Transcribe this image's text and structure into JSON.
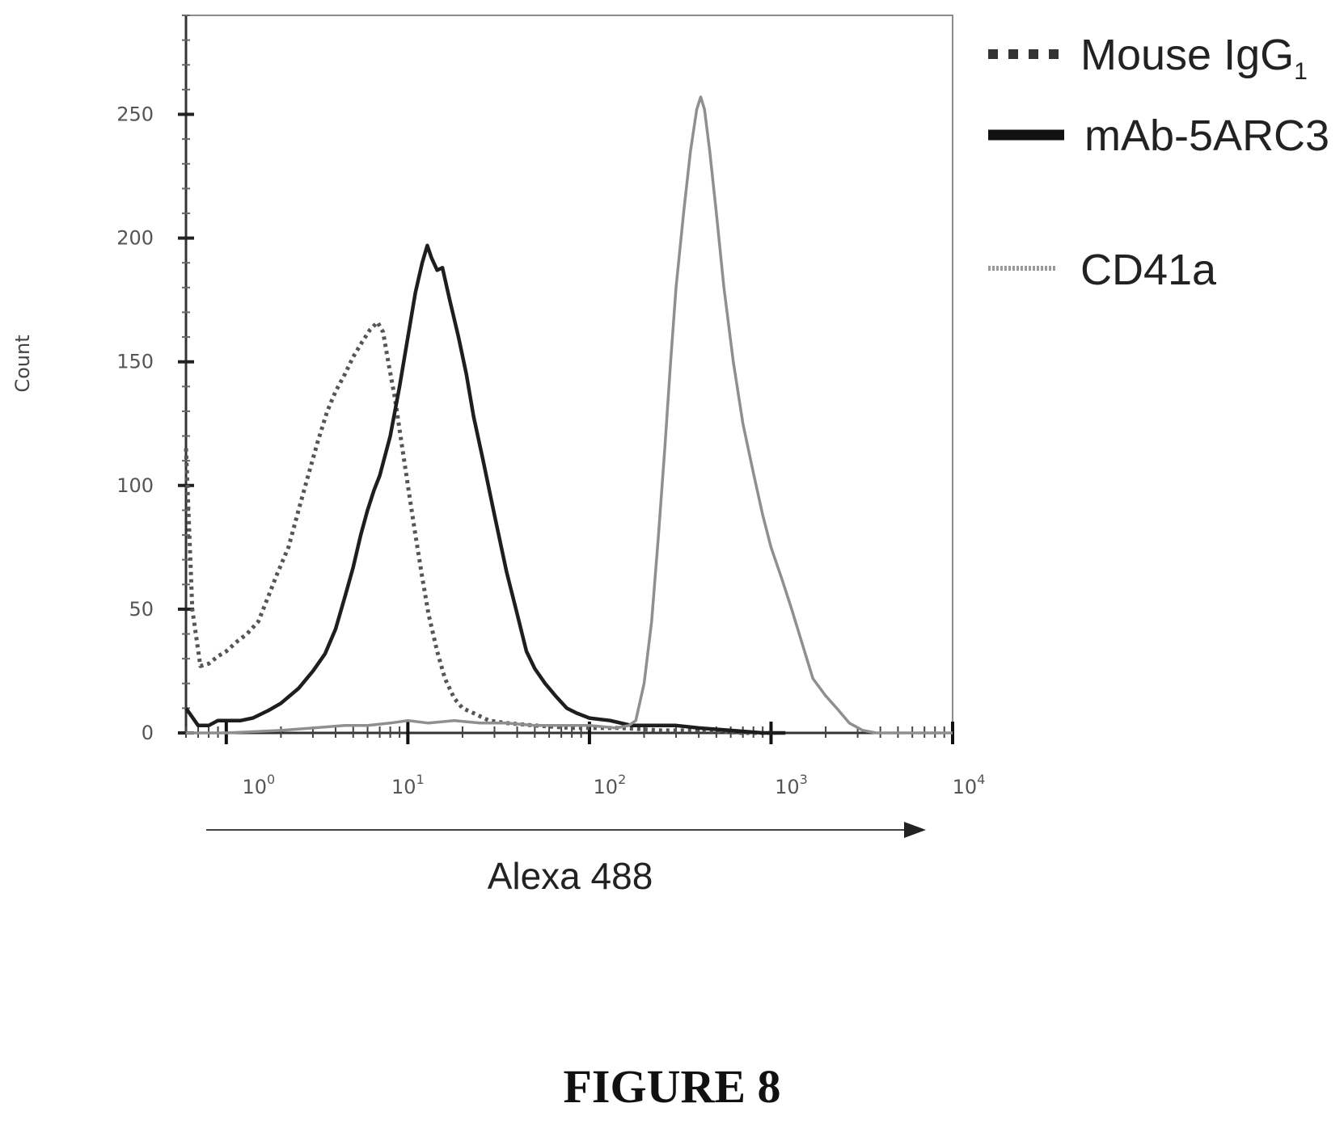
{
  "chart_data": {
    "type": "line",
    "ylabel": "Count",
    "xlabel": "Alexa 488",
    "x_scale": "log",
    "xlim": [
      0.6,
      10000
    ],
    "ylim": [
      0,
      290
    ],
    "x_ticks": [
      {
        "value": 1,
        "base": "10",
        "exp": "0"
      },
      {
        "value": 10,
        "base": "10",
        "exp": "1"
      },
      {
        "value": 100,
        "base": "10",
        "exp": "2"
      },
      {
        "value": 1000,
        "base": "10",
        "exp": "3"
      },
      {
        "value": 10000,
        "base": "10",
        "exp": "4"
      }
    ],
    "y_ticks": [
      0,
      50,
      100,
      150,
      200,
      250
    ],
    "legend_position": "top-right",
    "series": [
      {
        "name_main": "Mouse IgG",
        "name_sub": "1",
        "style": "dotted",
        "color": "#555555",
        "points": [
          [
            0.6,
            115
          ],
          [
            0.65,
            50
          ],
          [
            0.72,
            27
          ],
          [
            0.8,
            28
          ],
          [
            0.9,
            31
          ],
          [
            1.0,
            33
          ],
          [
            1.15,
            37
          ],
          [
            1.3,
            40
          ],
          [
            1.5,
            45
          ],
          [
            1.7,
            55
          ],
          [
            1.9,
            64
          ],
          [
            2.2,
            75
          ],
          [
            2.5,
            90
          ],
          [
            2.8,
            103
          ],
          [
            3.2,
            118
          ],
          [
            3.6,
            130
          ],
          [
            4.0,
            138
          ],
          [
            4.5,
            145
          ],
          [
            5.0,
            152
          ],
          [
            5.6,
            158
          ],
          [
            6.2,
            163
          ],
          [
            6.8,
            166
          ],
          [
            7.3,
            162
          ],
          [
            7.8,
            150
          ],
          [
            8.5,
            135
          ],
          [
            9.2,
            118
          ],
          [
            10.0,
            100
          ],
          [
            11.0,
            80
          ],
          [
            12.0,
            63
          ],
          [
            13.0,
            48
          ],
          [
            14.5,
            33
          ],
          [
            16.0,
            22
          ],
          [
            18.0,
            14
          ],
          [
            20.0,
            10
          ],
          [
            23.0,
            8
          ],
          [
            28.0,
            5
          ],
          [
            35.0,
            4
          ],
          [
            50.0,
            3
          ],
          [
            80.0,
            2
          ],
          [
            150.0,
            2
          ],
          [
            250.0,
            1
          ],
          [
            400.0,
            1
          ],
          [
            700.0,
            0
          ],
          [
            1000.0,
            0
          ]
        ]
      },
      {
        "name_main": "mAb-5ARC3",
        "name_sub": "",
        "style": "solid",
        "color": "#1e1e1e",
        "points": [
          [
            0.6,
            10
          ],
          [
            0.7,
            3
          ],
          [
            0.8,
            3
          ],
          [
            0.9,
            5
          ],
          [
            1.0,
            5
          ],
          [
            1.2,
            5
          ],
          [
            1.4,
            6
          ],
          [
            1.7,
            9
          ],
          [
            2.0,
            12
          ],
          [
            2.5,
            18
          ],
          [
            3.0,
            25
          ],
          [
            3.5,
            32
          ],
          [
            4.0,
            42
          ],
          [
            4.5,
            55
          ],
          [
            5.0,
            67
          ],
          [
            5.5,
            80
          ],
          [
            6.0,
            90
          ],
          [
            6.5,
            98
          ],
          [
            7.0,
            104
          ],
          [
            8.0,
            120
          ],
          [
            9.0,
            140
          ],
          [
            10.0,
            160
          ],
          [
            11.0,
            178
          ],
          [
            12.0,
            190
          ],
          [
            12.8,
            197
          ],
          [
            13.5,
            192
          ],
          [
            14.5,
            187
          ],
          [
            15.5,
            188
          ],
          [
            17.0,
            175
          ],
          [
            19.0,
            160
          ],
          [
            21.0,
            145
          ],
          [
            23.0,
            128
          ],
          [
            26.0,
            110
          ],
          [
            30.0,
            88
          ],
          [
            35.0,
            65
          ],
          [
            40.0,
            48
          ],
          [
            45.0,
            33
          ],
          [
            50.0,
            26
          ],
          [
            57.0,
            20
          ],
          [
            65.0,
            15
          ],
          [
            75.0,
            10
          ],
          [
            85.0,
            8
          ],
          [
            100.0,
            6
          ],
          [
            130.0,
            5
          ],
          [
            170.0,
            3
          ],
          [
            220.0,
            3
          ],
          [
            300.0,
            3
          ],
          [
            400.0,
            2
          ],
          [
            600.0,
            1
          ],
          [
            900.0,
            0
          ],
          [
            1200.0,
            0
          ]
        ]
      },
      {
        "name_main": "CD41a",
        "name_sub": "",
        "style": "gray",
        "color": "#8f8f8f",
        "points": [
          [
            0.6,
            0
          ],
          [
            1.0,
            0
          ],
          [
            2.0,
            1
          ],
          [
            3.0,
            2
          ],
          [
            4.5,
            3
          ],
          [
            6.0,
            3
          ],
          [
            8.0,
            4
          ],
          [
            10.0,
            5
          ],
          [
            13.0,
            4
          ],
          [
            18.0,
            5
          ],
          [
            25.0,
            4
          ],
          [
            35.0,
            4
          ],
          [
            50.0,
            3
          ],
          [
            70.0,
            3
          ],
          [
            100.0,
            3
          ],
          [
            140.0,
            2
          ],
          [
            165.0,
            3
          ],
          [
            180.0,
            5
          ],
          [
            200.0,
            20
          ],
          [
            220.0,
            45
          ],
          [
            240.0,
            80
          ],
          [
            260.0,
            115
          ],
          [
            280.0,
            150
          ],
          [
            300.0,
            180
          ],
          [
            330.0,
            210
          ],
          [
            360.0,
            235
          ],
          [
            390.0,
            252
          ],
          [
            410.0,
            257
          ],
          [
            430.0,
            252
          ],
          [
            460.0,
            235
          ],
          [
            500.0,
            210
          ],
          [
            550.0,
            180
          ],
          [
            620.0,
            150
          ],
          [
            700.0,
            125
          ],
          [
            800.0,
            105
          ],
          [
            900.0,
            88
          ],
          [
            1000.0,
            75
          ],
          [
            1150.0,
            62
          ],
          [
            1300.0,
            50
          ],
          [
            1500.0,
            35
          ],
          [
            1700.0,
            22
          ],
          [
            2000.0,
            15
          ],
          [
            2300.0,
            10
          ],
          [
            2700.0,
            4
          ],
          [
            3200.0,
            1
          ],
          [
            3800.0,
            0
          ],
          [
            4500.0,
            0
          ],
          [
            6000.0,
            0
          ],
          [
            10000.0,
            0
          ]
        ]
      }
    ]
  },
  "caption": "FIGURE 8"
}
